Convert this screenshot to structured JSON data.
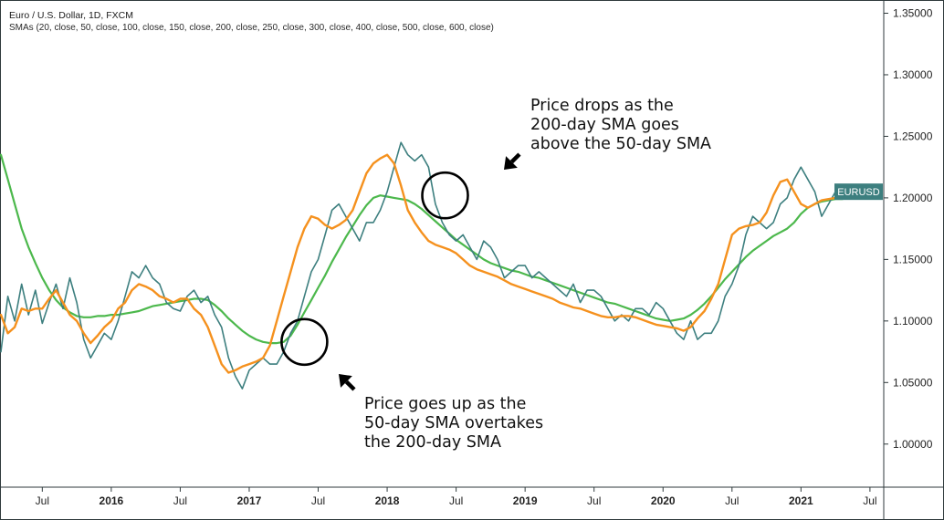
{
  "legend": {
    "title": "Euro / U.S. Dollar, 1D, FXCM",
    "indicators": "SMAs (20, close, 50, close, 100, close, 150, close, 200, close, 250, close, 300, close, 400, close, 500, close, 600, close)"
  },
  "annotations": {
    "golden_cross": "Price goes up as the\n50-day SMA overtakes\nthe 200-day SMA",
    "death_cross": "Price drops as the\n200-day SMA goes\nabove the 50-day SMA"
  },
  "price_badge": "EURUSD",
  "colors": {
    "price": "#3d7f7f",
    "sma50": "#f5911e",
    "sma200": "#4cb84c",
    "badge_bg": "#3d7f7f",
    "badge_text": "#ffffff",
    "marker": "#000000"
  },
  "chart_data": {
    "type": "line",
    "title": "Euro / U.S. Dollar, 1D, FXCM",
    "xlabel": "",
    "ylabel": "",
    "x_unit": "decimal year",
    "xlim": [
      2015.2,
      2021.6
    ],
    "ylim": [
      0.965,
      1.36
    ],
    "y_ticks": [
      "1.35000",
      "1.30000",
      "1.25000",
      "1.20000",
      "1.15000",
      "1.10000",
      "1.05000",
      "1.00000"
    ],
    "y_tick_values": [
      1.35,
      1.3,
      1.25,
      1.2,
      1.15,
      1.1,
      1.05,
      1.0
    ],
    "x_ticks": [
      {
        "label": "Jul",
        "x": 2015.5,
        "bold": false
      },
      {
        "label": "2016",
        "x": 2016.0,
        "bold": true
      },
      {
        "label": "Jul",
        "x": 2016.5,
        "bold": false
      },
      {
        "label": "2017",
        "x": 2017.0,
        "bold": true
      },
      {
        "label": "Jul",
        "x": 2017.5,
        "bold": false
      },
      {
        "label": "2018",
        "x": 2018.0,
        "bold": true
      },
      {
        "label": "Jul",
        "x": 2018.5,
        "bold": false
      },
      {
        "label": "2019",
        "x": 2019.0,
        "bold": true
      },
      {
        "label": "Jul",
        "x": 2019.5,
        "bold": false
      },
      {
        "label": "2020",
        "x": 2020.0,
        "bold": true
      },
      {
        "label": "Jul",
        "x": 2020.5,
        "bold": false
      },
      {
        "label": "2021",
        "x": 2021.0,
        "bold": true
      },
      {
        "label": "Jul",
        "x": 2021.5,
        "bold": false
      }
    ],
    "series": [
      {
        "name": "EURUSD",
        "x": [
          2015.2,
          2015.25,
          2015.3,
          2015.35,
          2015.4,
          2015.45,
          2015.5,
          2015.55,
          2015.6,
          2015.65,
          2015.7,
          2015.75,
          2015.8,
          2015.85,
          2015.9,
          2015.95,
          2016.0,
          2016.05,
          2016.1,
          2016.15,
          2016.2,
          2016.25,
          2016.3,
          2016.35,
          2016.4,
          2016.45,
          2016.5,
          2016.55,
          2016.6,
          2016.65,
          2016.7,
          2016.75,
          2016.8,
          2016.85,
          2016.9,
          2016.95,
          2017.0,
          2017.05,
          2017.1,
          2017.15,
          2017.2,
          2017.25,
          2017.3,
          2017.35,
          2017.4,
          2017.45,
          2017.5,
          2017.55,
          2017.6,
          2017.65,
          2017.7,
          2017.75,
          2017.8,
          2017.85,
          2017.9,
          2017.95,
          2018.0,
          2018.05,
          2018.1,
          2018.15,
          2018.2,
          2018.25,
          2018.3,
          2018.35,
          2018.4,
          2018.45,
          2018.5,
          2018.55,
          2018.6,
          2018.65,
          2018.7,
          2018.75,
          2018.8,
          2018.85,
          2018.9,
          2018.95,
          2019.0,
          2019.05,
          2019.1,
          2019.15,
          2019.2,
          2019.25,
          2019.3,
          2019.35,
          2019.4,
          2019.45,
          2019.5,
          2019.55,
          2019.6,
          2019.65,
          2019.7,
          2019.75,
          2019.8,
          2019.85,
          2019.9,
          2019.95,
          2020.0,
          2020.05,
          2020.1,
          2020.15,
          2020.2,
          2020.25,
          2020.3,
          2020.35,
          2020.4,
          2020.45,
          2020.5,
          2020.55,
          2020.6,
          2020.65,
          2020.7,
          2020.75,
          2020.8,
          2020.85,
          2020.9,
          2020.95,
          2021.0,
          2021.05,
          2021.1,
          2021.15,
          2021.2,
          2021.25,
          2021.3
        ],
        "values": [
          1.075,
          1.12,
          1.1,
          1.13,
          1.105,
          1.125,
          1.098,
          1.115,
          1.13,
          1.11,
          1.135,
          1.115,
          1.085,
          1.07,
          1.08,
          1.09,
          1.085,
          1.1,
          1.12,
          1.14,
          1.135,
          1.145,
          1.135,
          1.13,
          1.115,
          1.11,
          1.108,
          1.12,
          1.125,
          1.115,
          1.12,
          1.105,
          1.095,
          1.07,
          1.055,
          1.045,
          1.06,
          1.065,
          1.07,
          1.065,
          1.065,
          1.075,
          1.09,
          1.1,
          1.12,
          1.14,
          1.15,
          1.17,
          1.19,
          1.195,
          1.185,
          1.175,
          1.165,
          1.18,
          1.18,
          1.19,
          1.205,
          1.225,
          1.245,
          1.235,
          1.23,
          1.235,
          1.225,
          1.195,
          1.18,
          1.17,
          1.165,
          1.17,
          1.16,
          1.15,
          1.165,
          1.16,
          1.15,
          1.135,
          1.14,
          1.145,
          1.145,
          1.135,
          1.14,
          1.135,
          1.13,
          1.125,
          1.12,
          1.13,
          1.115,
          1.125,
          1.125,
          1.12,
          1.11,
          1.1,
          1.105,
          1.1,
          1.11,
          1.11,
          1.105,
          1.115,
          1.11,
          1.1,
          1.09,
          1.085,
          1.1,
          1.085,
          1.09,
          1.09,
          1.1,
          1.12,
          1.13,
          1.145,
          1.17,
          1.185,
          1.18,
          1.175,
          1.18,
          1.195,
          1.2,
          1.215,
          1.225,
          1.215,
          1.205,
          1.185,
          1.195,
          1.205,
          1.205
        ]
      },
      {
        "name": "SMA 50",
        "x": [
          2015.2,
          2015.25,
          2015.3,
          2015.35,
          2015.4,
          2015.45,
          2015.5,
          2015.55,
          2015.6,
          2015.65,
          2015.7,
          2015.75,
          2015.8,
          2015.85,
          2015.9,
          2015.95,
          2016.0,
          2016.05,
          2016.1,
          2016.15,
          2016.2,
          2016.25,
          2016.3,
          2016.35,
          2016.4,
          2016.45,
          2016.5,
          2016.55,
          2016.6,
          2016.65,
          2016.7,
          2016.75,
          2016.8,
          2016.85,
          2016.9,
          2016.95,
          2017.0,
          2017.05,
          2017.1,
          2017.15,
          2017.2,
          2017.25,
          2017.3,
          2017.35,
          2017.4,
          2017.45,
          2017.5,
          2017.55,
          2017.6,
          2017.65,
          2017.7,
          2017.75,
          2017.8,
          2017.85,
          2017.9,
          2017.95,
          2018.0,
          2018.05,
          2018.1,
          2018.15,
          2018.2,
          2018.25,
          2018.3,
          2018.35,
          2018.4,
          2018.45,
          2018.5,
          2018.55,
          2018.6,
          2018.65,
          2018.7,
          2018.75,
          2018.8,
          2018.85,
          2018.9,
          2018.95,
          2019.0,
          2019.05,
          2019.1,
          2019.15,
          2019.2,
          2019.25,
          2019.3,
          2019.35,
          2019.4,
          2019.45,
          2019.5,
          2019.55,
          2019.6,
          2019.65,
          2019.7,
          2019.75,
          2019.8,
          2019.85,
          2019.9,
          2019.95,
          2020.0,
          2020.05,
          2020.1,
          2020.15,
          2020.2,
          2020.25,
          2020.3,
          2020.35,
          2020.4,
          2020.45,
          2020.5,
          2020.55,
          2020.6,
          2020.65,
          2020.7,
          2020.75,
          2020.8,
          2020.85,
          2020.9,
          2020.95,
          2021.0,
          2021.05,
          2021.1,
          2021.15,
          2021.2,
          2021.25,
          2021.3
        ],
        "values": [
          1.105,
          1.09,
          1.095,
          1.11,
          1.108,
          1.11,
          1.11,
          1.118,
          1.125,
          1.115,
          1.105,
          1.1,
          1.09,
          1.082,
          1.088,
          1.095,
          1.1,
          1.11,
          1.115,
          1.125,
          1.13,
          1.128,
          1.125,
          1.12,
          1.118,
          1.115,
          1.118,
          1.118,
          1.11,
          1.105,
          1.095,
          1.08,
          1.065,
          1.058,
          1.06,
          1.063,
          1.065,
          1.067,
          1.07,
          1.08,
          1.1,
          1.12,
          1.14,
          1.16,
          1.175,
          1.185,
          1.183,
          1.178,
          1.175,
          1.178,
          1.182,
          1.19,
          1.205,
          1.22,
          1.228,
          1.232,
          1.235,
          1.228,
          1.21,
          1.19,
          1.18,
          1.172,
          1.165,
          1.162,
          1.16,
          1.158,
          1.155,
          1.15,
          1.145,
          1.142,
          1.14,
          1.138,
          1.136,
          1.133,
          1.13,
          1.128,
          1.126,
          1.124,
          1.122,
          1.12,
          1.118,
          1.115,
          1.113,
          1.111,
          1.11,
          1.108,
          1.106,
          1.104,
          1.103,
          1.103,
          1.104,
          1.104,
          1.103,
          1.101,
          1.099,
          1.097,
          1.096,
          1.095,
          1.094,
          1.092,
          1.095,
          1.102,
          1.108,
          1.118,
          1.13,
          1.15,
          1.17,
          1.175,
          1.177,
          1.178,
          1.18,
          1.188,
          1.202,
          1.213,
          1.215,
          1.205,
          1.195,
          1.192,
          1.195,
          1.198,
          1.199,
          1.2,
          1.2
        ]
      },
      {
        "name": "SMA 200",
        "x": [
          2015.2,
          2015.25,
          2015.3,
          2015.35,
          2015.4,
          2015.45,
          2015.5,
          2015.55,
          2015.6,
          2015.65,
          2015.7,
          2015.75,
          2015.8,
          2015.85,
          2015.9,
          2015.95,
          2016.0,
          2016.05,
          2016.1,
          2016.15,
          2016.2,
          2016.25,
          2016.3,
          2016.35,
          2016.4,
          2016.45,
          2016.5,
          2016.55,
          2016.6,
          2016.65,
          2016.7,
          2016.75,
          2016.8,
          2016.85,
          2016.9,
          2016.95,
          2017.0,
          2017.05,
          2017.1,
          2017.15,
          2017.2,
          2017.25,
          2017.3,
          2017.35,
          2017.4,
          2017.45,
          2017.5,
          2017.55,
          2017.6,
          2017.65,
          2017.7,
          2017.75,
          2017.8,
          2017.85,
          2017.9,
          2017.95,
          2018.0,
          2018.05,
          2018.1,
          2018.15,
          2018.2,
          2018.25,
          2018.3,
          2018.35,
          2018.4,
          2018.45,
          2018.5,
          2018.55,
          2018.6,
          2018.65,
          2018.7,
          2018.75,
          2018.8,
          2018.85,
          2018.9,
          2018.95,
          2019.0,
          2019.05,
          2019.1,
          2019.15,
          2019.2,
          2019.25,
          2019.3,
          2019.35,
          2019.4,
          2019.45,
          2019.5,
          2019.55,
          2019.6,
          2019.65,
          2019.7,
          2019.75,
          2019.8,
          2019.85,
          2019.9,
          2019.95,
          2020.0,
          2020.05,
          2020.1,
          2020.15,
          2020.2,
          2020.25,
          2020.3,
          2020.35,
          2020.4,
          2020.45,
          2020.5,
          2020.55,
          2020.6,
          2020.65,
          2020.7,
          2020.75,
          2020.8,
          2020.85,
          2020.9,
          2020.95,
          2021.0,
          2021.05,
          2021.1,
          2021.15,
          2021.2,
          2021.25,
          2021.3
        ],
        "values": [
          1.235,
          1.215,
          1.195,
          1.175,
          1.16,
          1.147,
          1.135,
          1.125,
          1.117,
          1.111,
          1.107,
          1.104,
          1.103,
          1.103,
          1.104,
          1.104,
          1.105,
          1.105,
          1.106,
          1.107,
          1.108,
          1.11,
          1.112,
          1.113,
          1.114,
          1.115,
          1.116,
          1.117,
          1.118,
          1.118,
          1.117,
          1.113,
          1.108,
          1.102,
          1.097,
          1.092,
          1.088,
          1.085,
          1.083,
          1.082,
          1.082,
          1.083,
          1.088,
          1.097,
          1.107,
          1.117,
          1.127,
          1.137,
          1.148,
          1.158,
          1.168,
          1.177,
          1.186,
          1.194,
          1.2,
          1.202,
          1.201,
          1.2,
          1.199,
          1.198,
          1.195,
          1.191,
          1.186,
          1.181,
          1.176,
          1.171,
          1.166,
          1.162,
          1.158,
          1.154,
          1.15,
          1.147,
          1.145,
          1.143,
          1.141,
          1.14,
          1.138,
          1.136,
          1.135,
          1.133,
          1.131,
          1.129,
          1.127,
          1.125,
          1.123,
          1.121,
          1.119,
          1.117,
          1.115,
          1.114,
          1.112,
          1.11,
          1.108,
          1.106,
          1.104,
          1.102,
          1.101,
          1.1,
          1.101,
          1.102,
          1.105,
          1.109,
          1.114,
          1.12,
          1.127,
          1.134,
          1.14,
          1.146,
          1.152,
          1.157,
          1.161,
          1.165,
          1.169,
          1.172,
          1.175,
          1.18,
          1.187,
          1.192,
          1.195,
          1.197,
          1.198,
          1.199,
          1.199
        ]
      }
    ],
    "annotations": [
      {
        "text": "Price goes up as the 50-day SMA overtakes the 200-day SMA",
        "x": 2017.4,
        "y": 1.083
      },
      {
        "text": "Price drops as the 200-day SMA goes above the 50-day SMA",
        "x": 2018.42,
        "y": 1.202
      }
    ],
    "last_price_label": "EURUSD"
  }
}
